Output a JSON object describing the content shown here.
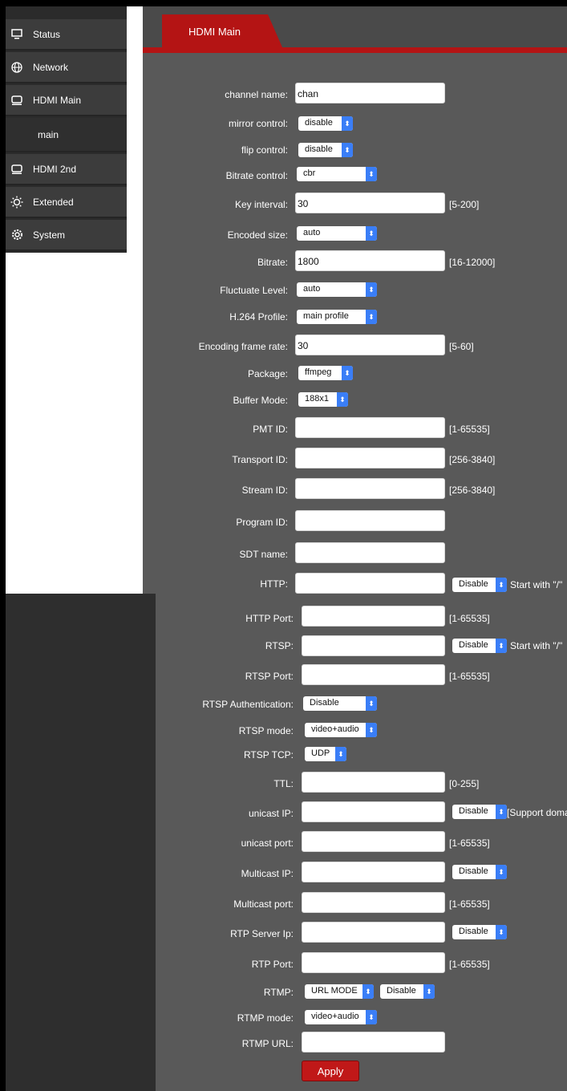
{
  "sidebar": {
    "items": [
      {
        "label": "Status",
        "icon": "monitor-icon"
      },
      {
        "label": "Network",
        "icon": "globe-icon"
      },
      {
        "label": "HDMI Main",
        "icon": "hdmi-icon"
      },
      {
        "label": "main",
        "icon": ""
      },
      {
        "label": "HDMI 2nd",
        "icon": "hdmi-icon"
      },
      {
        "label": "Extended",
        "icon": "sun-icon"
      },
      {
        "label": "System",
        "icon": "gear-icon"
      }
    ]
  },
  "tab": {
    "title": "HDMI Main"
  },
  "fields": {
    "channel_name": {
      "label": "channel name:",
      "value": "chan"
    },
    "mirror_control": {
      "label": "mirror control:",
      "value": "disable"
    },
    "flip_control": {
      "label": "flip control:",
      "value": "disable"
    },
    "bitrate_control": {
      "label": "Bitrate control:",
      "value": "cbr"
    },
    "key_interval": {
      "label": "Key interval:",
      "value": "30",
      "hint": "[5-200]"
    },
    "encoded_size": {
      "label": "Encoded size:",
      "value": "auto"
    },
    "bitrate": {
      "label": "Bitrate:",
      "value": "1800",
      "hint": "[16-12000]"
    },
    "fluctuate_level": {
      "label": "Fluctuate Level:",
      "value": "auto"
    },
    "h264_profile": {
      "label": "H.264 Profile:",
      "value": "main profile"
    },
    "encoding_frame_rate": {
      "label": "Encoding frame rate:",
      "value": "30",
      "hint": "[5-60]"
    },
    "package": {
      "label": "Package:",
      "value": "ffmpeg"
    },
    "buffer_mode": {
      "label": "Buffer Mode:",
      "value": "188x1"
    },
    "pmt_id": {
      "label": "PMT ID:",
      "value": "",
      "hint": "[1-65535]"
    },
    "transport_id": {
      "label": "Transport ID:",
      "value": "",
      "hint": "[256-3840]"
    },
    "stream_id": {
      "label": "Stream ID:",
      "value": "",
      "hint": "[256-3840]"
    },
    "program_id": {
      "label": "Program ID:",
      "value": ""
    },
    "sdt_name": {
      "label": "SDT name:",
      "value": ""
    },
    "http": {
      "label": "HTTP:",
      "value": "",
      "select": "Disable",
      "hint": "Start with \"/\""
    },
    "http_port": {
      "label": "HTTP Port:",
      "value": "",
      "hint": "[1-65535]"
    },
    "rtsp": {
      "label": "RTSP:",
      "value": "",
      "select": "Disable",
      "hint": "Start with \"/\""
    },
    "rtsp_port": {
      "label": "RTSP Port:",
      "value": "",
      "hint": "[1-65535]"
    },
    "rtsp_auth": {
      "label": "RTSP Authentication:",
      "value": "Disable"
    },
    "rtsp_mode": {
      "label": "RTSP mode:",
      "value": "video+audio"
    },
    "rtsp_tcp": {
      "label": "RTSP TCP:",
      "value": "UDP"
    },
    "ttl": {
      "label": "TTL:",
      "value": "",
      "hint": "[0-255]"
    },
    "unicast_ip": {
      "label": "unicast IP:",
      "value": "",
      "select": "Disable",
      "hint": "[Support doma"
    },
    "unicast_port": {
      "label": "unicast port:",
      "value": "",
      "hint": "[1-65535]"
    },
    "multicast_ip": {
      "label": "Multicast IP:",
      "value": "",
      "select": "Disable"
    },
    "multicast_port": {
      "label": "Multicast port:",
      "value": "",
      "hint": "[1-65535]"
    },
    "rtp_server_ip": {
      "label": "RTP Server Ip:",
      "value": "",
      "select": "Disable"
    },
    "rtp_port": {
      "label": "RTP Port:",
      "value": "",
      "hint": "[1-65535]"
    },
    "rtmp": {
      "label": "RTMP:",
      "select1": "URL MODE",
      "select2": "Disable"
    },
    "rtmp_mode": {
      "label": "RTMP mode:",
      "value": "video+audio"
    },
    "rtmp_url": {
      "label": "RTMP URL:",
      "value": ""
    }
  },
  "actions": {
    "apply": "Apply"
  },
  "colors": {
    "accent": "#b41414",
    "panel": "#595959",
    "sidebar": "#3c3c3c",
    "select_arrow": "#3a7ef7"
  }
}
